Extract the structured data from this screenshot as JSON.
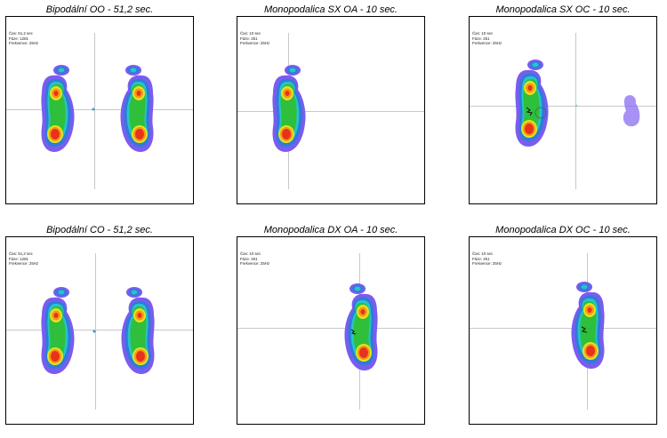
{
  "panels": [
    {
      "title": "Bipodální OO - 51,2 sec.",
      "info": [
        "Čas: 51,2 sec",
        "Fáze: 1281",
        "Frekvence: 25Hz"
      ]
    },
    {
      "title": "Monopodalica SX OA - 10 sec.",
      "info": [
        "Čas: 10 sec",
        "Fáze: 251",
        "Frekvence: 25Hz"
      ]
    },
    {
      "title": "Monopodalica SX OC - 10 sec.",
      "info": [
        "Čas: 10 sec",
        "Fáze: 251",
        "Frekvence: 25Hz"
      ]
    },
    {
      "title": "Bipodální CO - 51,2 sec.",
      "info": [
        "Čas: 51,2 sec",
        "Fáze: 1281",
        "Frekvence: 25Hz"
      ]
    },
    {
      "title": "Monopodalica DX OA - 10 sec.",
      "info": [
        "Čas: 10 sec",
        "Fáze: 251",
        "Frekvence: 25Hz"
      ]
    },
    {
      "title": "Monopodalica DX OC - 10 sec.",
      "info": [
        "Čas: 10 sec",
        "Fáze: 251",
        "Frekvence: 25Hz"
      ]
    }
  ],
  "colors": {
    "outer": "#7a5cf0",
    "blue": "#2f7bd8",
    "cyan": "#27c3c9",
    "green": "#2fbf3a",
    "yellow": "#e8e020",
    "orange": "#f39a14",
    "red": "#e8321c"
  }
}
